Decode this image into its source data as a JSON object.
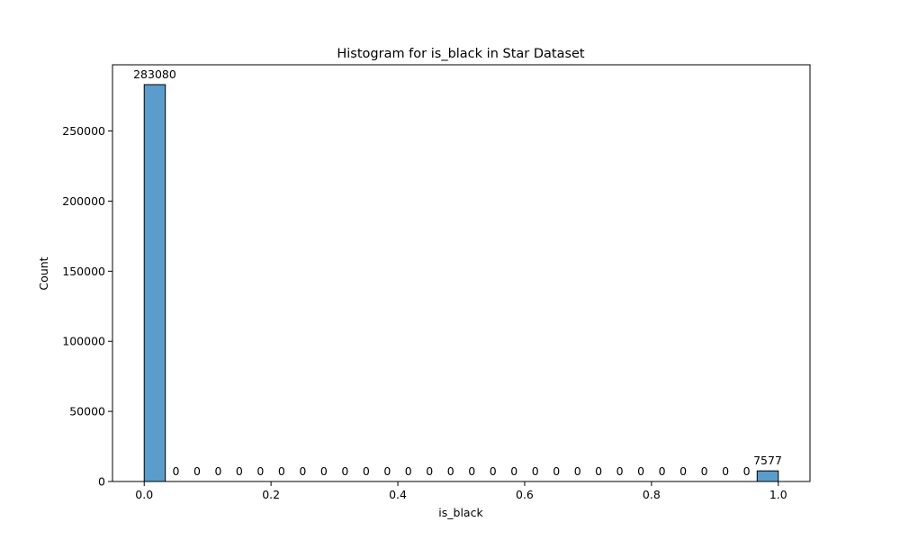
{
  "chart_data": {
    "type": "bar",
    "title": "Histogram for is_black in Star Dataset",
    "xlabel": "is_black",
    "ylabel": "Count",
    "xlim": [
      -0.05,
      1.05
    ],
    "ylim": [
      0,
      297234
    ],
    "bin_width": 0.0333333,
    "bins_start": 0.0,
    "values": [
      283080,
      0,
      0,
      0,
      0,
      0,
      0,
      0,
      0,
      0,
      0,
      0,
      0,
      0,
      0,
      0,
      0,
      0,
      0,
      0,
      0,
      0,
      0,
      0,
      0,
      0,
      0,
      0,
      0,
      7577
    ],
    "x_ticks": [
      "0.0",
      "0.2",
      "0.4",
      "0.6",
      "0.8",
      "1.0"
    ],
    "x_tick_values": [
      0.0,
      0.2,
      0.4,
      0.6,
      0.8,
      1.0
    ],
    "y_ticks": [
      "0",
      "50000",
      "100000",
      "150000",
      "200000",
      "250000"
    ],
    "y_tick_values": [
      0,
      50000,
      100000,
      150000,
      200000,
      250000
    ],
    "grid": false,
    "legend": "none",
    "bar_color": "#5a9dcb",
    "bar_edge_color": "#000000"
  }
}
